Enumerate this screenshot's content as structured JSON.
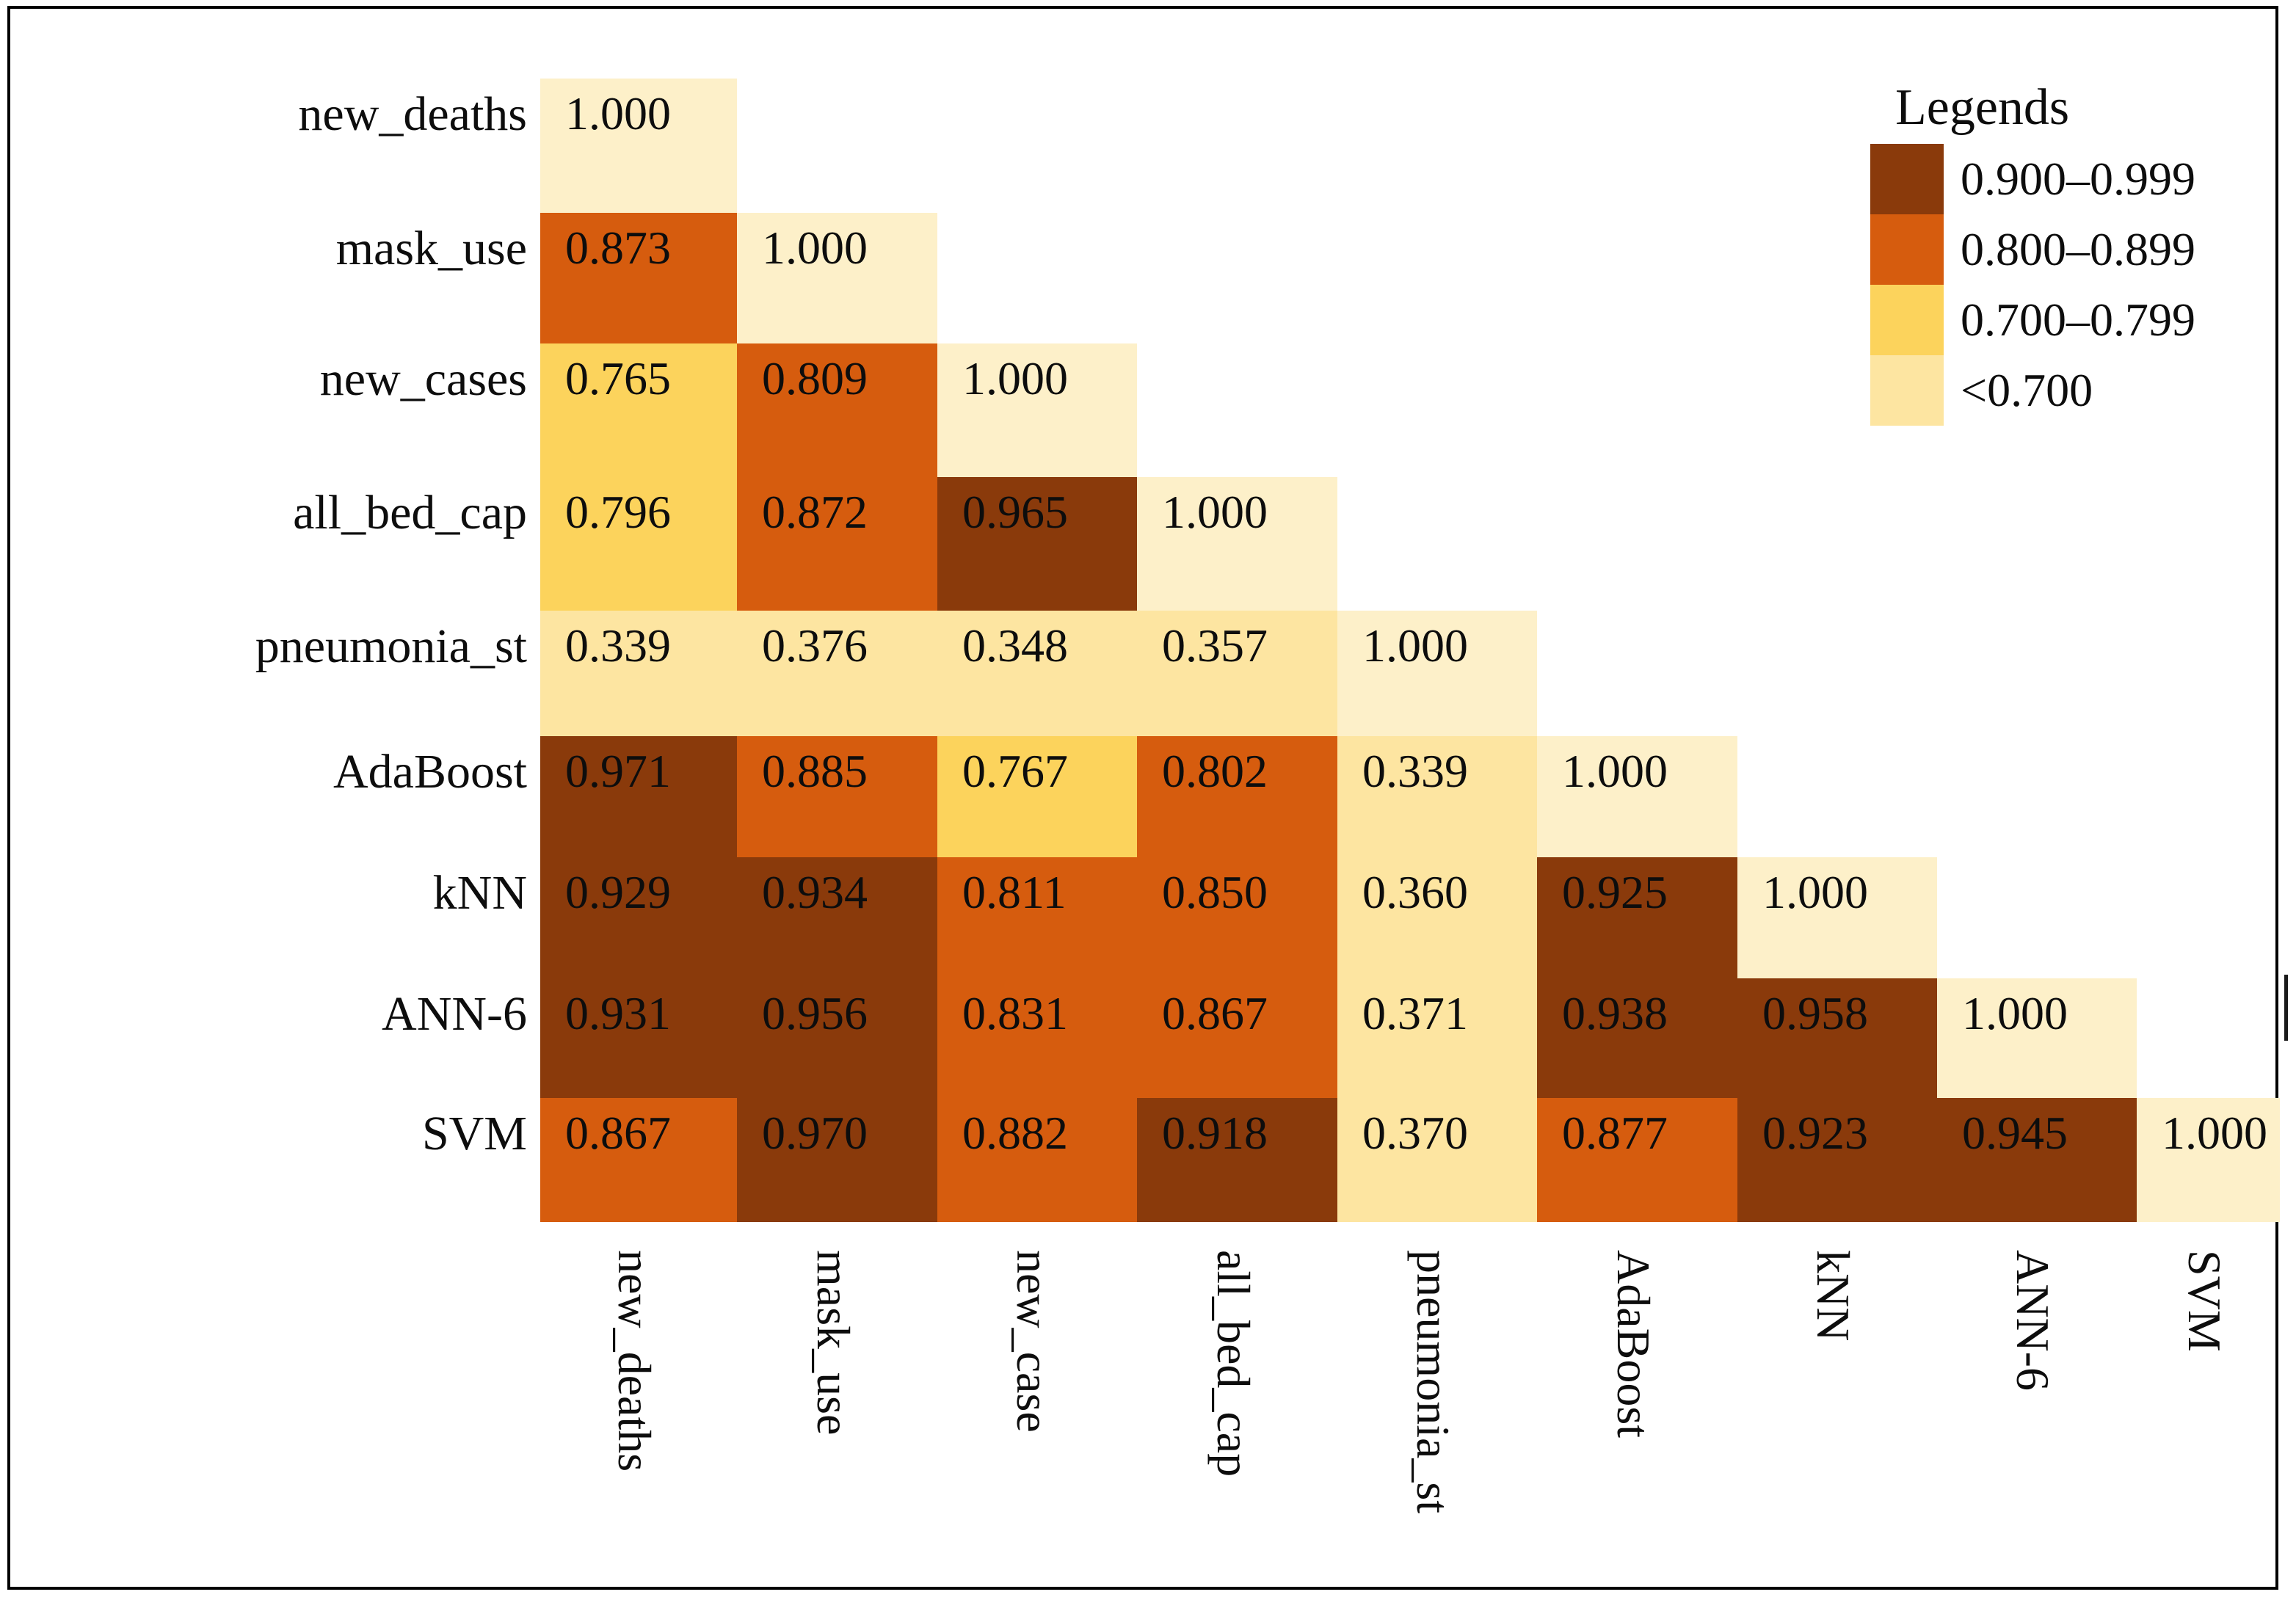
{
  "chart_data": {
    "type": "heatmap",
    "title": "",
    "triangle": "lower",
    "grid": false,
    "value_decimals": 3,
    "legend": {
      "title": "Legends",
      "position": "top-right",
      "items": [
        {
          "label": "0.900–0.999",
          "color": "#8a3a0b",
          "min": 0.9
        },
        {
          "label": "0.800–0.899",
          "color": "#d65c0e",
          "min": 0.8
        },
        {
          "label": "0.700–0.799",
          "color": "#fcd35c",
          "min": 0.7
        },
        {
          "label": "<0.700",
          "color": "#fde5a1",
          "min": 0.0
        }
      ]
    },
    "diagonal_color": "#fdf0c9",
    "text_color": "#0d0d0d",
    "border_color": "#000000",
    "row_labels": [
      "new_deaths",
      "mask_use",
      "new_cases",
      "all_bed_cap",
      "pneumonia_st",
      "AdaBoost",
      "kNN",
      "ANN-6",
      "SVM"
    ],
    "col_labels": [
      "new_deaths",
      "mask_use",
      "new_case",
      "all_bed_cap",
      "pneumonia_st",
      "AdaBoost",
      "kNN",
      "ANN-6",
      "SVM"
    ],
    "matrix": [
      [
        1.0
      ],
      [
        0.873,
        1.0
      ],
      [
        0.765,
        0.809,
        1.0
      ],
      [
        0.796,
        0.872,
        0.965,
        1.0
      ],
      [
        0.339,
        0.376,
        0.348,
        0.357,
        1.0
      ],
      [
        0.971,
        0.885,
        0.767,
        0.802,
        0.339,
        1.0
      ],
      [
        0.929,
        0.934,
        0.811,
        0.85,
        0.36,
        0.925,
        1.0
      ],
      [
        0.931,
        0.956,
        0.831,
        0.867,
        0.371,
        0.938,
        0.958,
        1.0
      ],
      [
        0.867,
        0.97,
        0.882,
        0.918,
        0.37,
        0.877,
        0.923,
        0.945,
        1.0
      ]
    ]
  }
}
